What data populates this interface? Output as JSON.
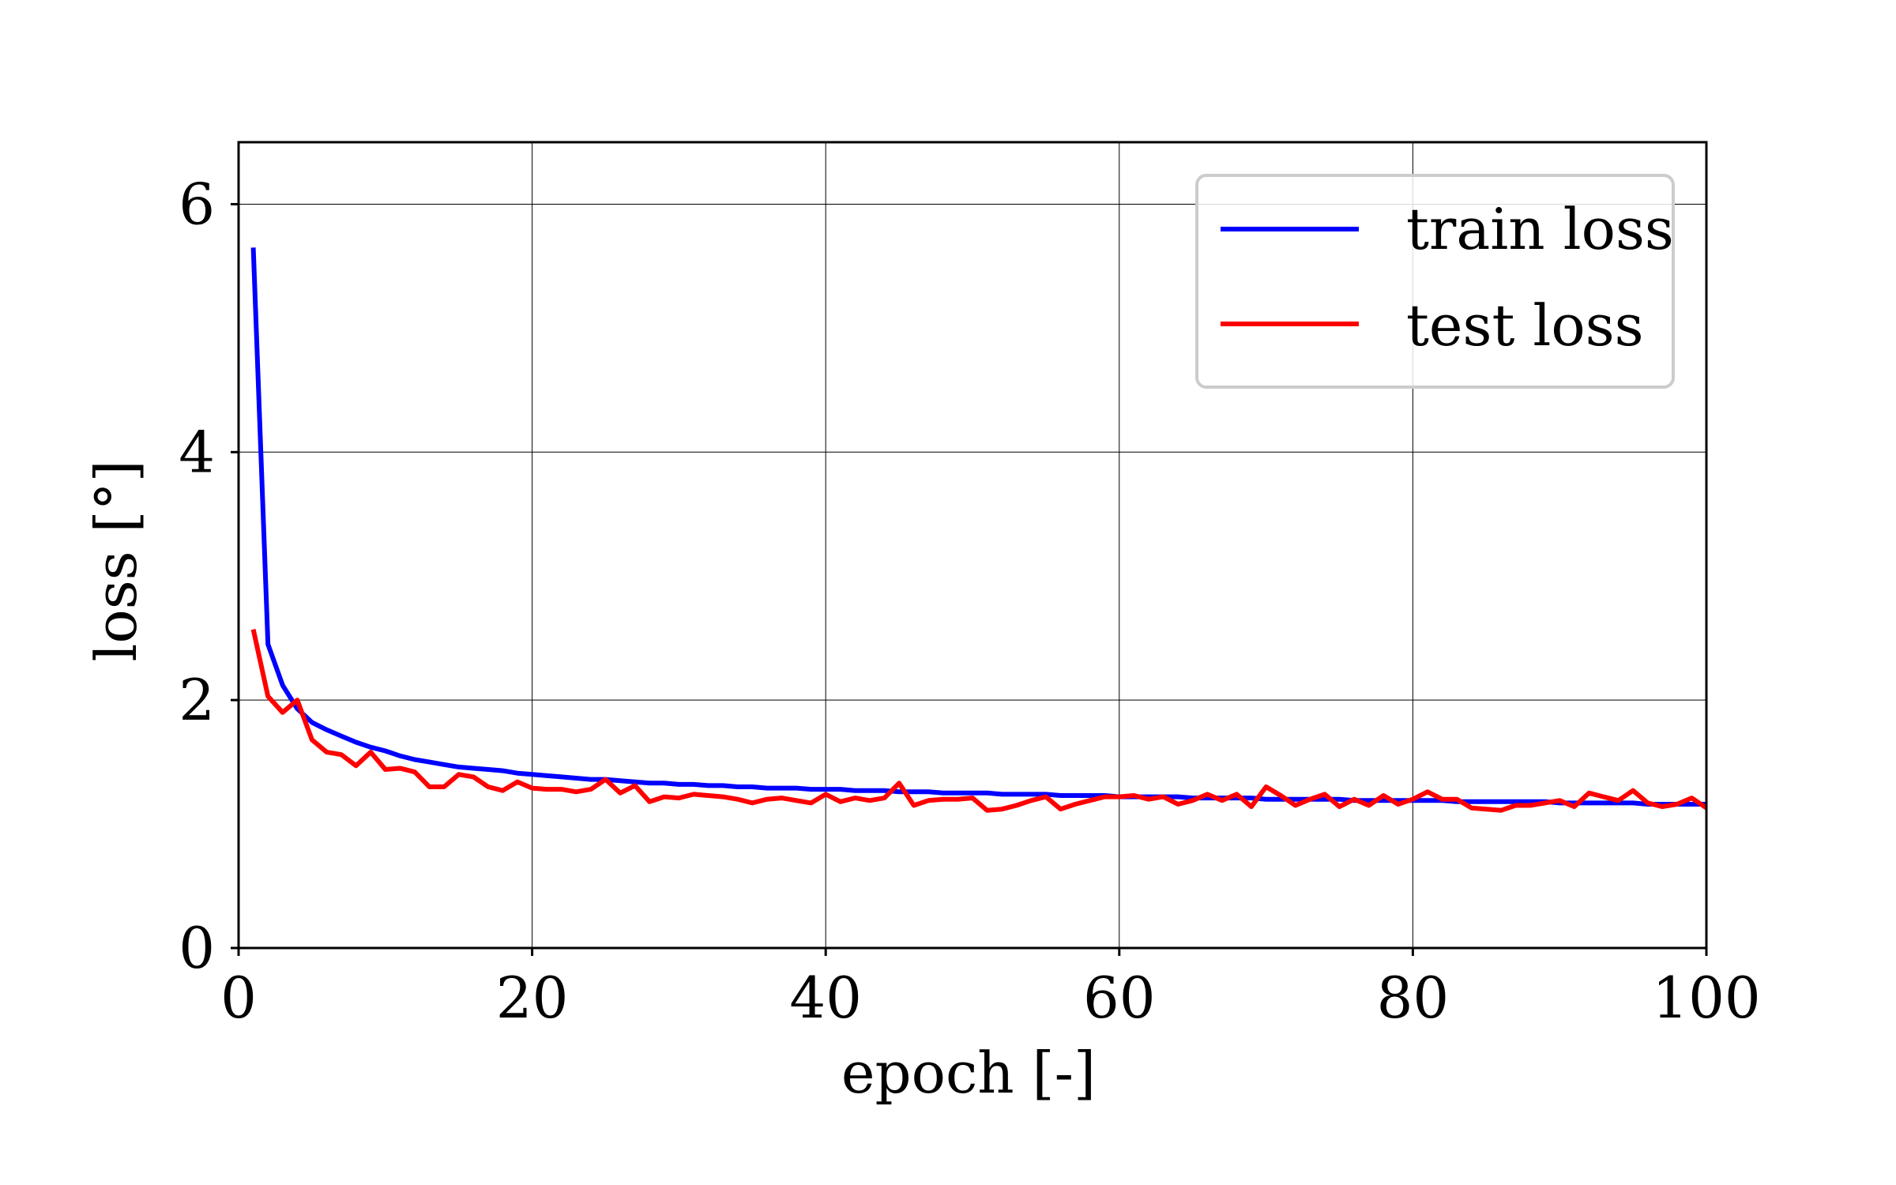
{
  "chart_data": {
    "type": "line",
    "title": "",
    "xlabel": "epoch [-]",
    "ylabel": "loss [°]",
    "xlim": [
      0,
      100
    ],
    "ylim": [
      0,
      6.5
    ],
    "xticks": [
      0,
      20,
      40,
      60,
      80,
      100
    ],
    "xtick_labels": [
      "0",
      "20",
      "40",
      "60",
      "80",
      "100"
    ],
    "yticks": [
      0,
      2,
      4,
      6
    ],
    "ytick_labels": [
      "0",
      "2",
      "4",
      "6"
    ],
    "grid": true,
    "legend_position": "top-right",
    "x": [
      1,
      2,
      3,
      4,
      5,
      6,
      7,
      8,
      9,
      10,
      11,
      12,
      13,
      14,
      15,
      16,
      17,
      18,
      19,
      20,
      21,
      22,
      23,
      24,
      25,
      26,
      27,
      28,
      29,
      30,
      31,
      32,
      33,
      34,
      35,
      36,
      37,
      38,
      39,
      40,
      41,
      42,
      43,
      44,
      45,
      46,
      47,
      48,
      49,
      50,
      51,
      52,
      53,
      54,
      55,
      56,
      57,
      58,
      59,
      60,
      61,
      62,
      63,
      64,
      65,
      66,
      67,
      68,
      69,
      70,
      71,
      72,
      73,
      74,
      75,
      76,
      77,
      78,
      79,
      80,
      81,
      82,
      83,
      84,
      85,
      86,
      87,
      88,
      89,
      90,
      91,
      92,
      93,
      94,
      95,
      96,
      97,
      98,
      99,
      100
    ],
    "series": [
      {
        "name": "train loss",
        "color": "#0000ff",
        "values": [
          5.65,
          2.45,
          2.12,
          1.93,
          1.82,
          1.76,
          1.71,
          1.66,
          1.62,
          1.59,
          1.55,
          1.52,
          1.5,
          1.48,
          1.46,
          1.45,
          1.44,
          1.43,
          1.41,
          1.4,
          1.39,
          1.38,
          1.37,
          1.36,
          1.36,
          1.35,
          1.34,
          1.33,
          1.33,
          1.32,
          1.32,
          1.31,
          1.31,
          1.3,
          1.3,
          1.29,
          1.29,
          1.29,
          1.28,
          1.28,
          1.28,
          1.27,
          1.27,
          1.27,
          1.26,
          1.26,
          1.26,
          1.25,
          1.25,
          1.25,
          1.25,
          1.24,
          1.24,
          1.24,
          1.24,
          1.23,
          1.23,
          1.23,
          1.23,
          1.22,
          1.22,
          1.22,
          1.22,
          1.22,
          1.21,
          1.21,
          1.21,
          1.21,
          1.21,
          1.2,
          1.2,
          1.2,
          1.2,
          1.2,
          1.2,
          1.19,
          1.19,
          1.19,
          1.19,
          1.19,
          1.19,
          1.19,
          1.18,
          1.18,
          1.18,
          1.18,
          1.18,
          1.18,
          1.18,
          1.17,
          1.17,
          1.17,
          1.17,
          1.17,
          1.17,
          1.16,
          1.16,
          1.16,
          1.16,
          1.16
        ]
      },
      {
        "name": "test loss",
        "color": "#ff0000",
        "values": [
          2.57,
          2.03,
          1.9,
          2.0,
          1.68,
          1.58,
          1.56,
          1.47,
          1.58,
          1.44,
          1.45,
          1.42,
          1.3,
          1.3,
          1.4,
          1.38,
          1.3,
          1.27,
          1.34,
          1.29,
          1.28,
          1.28,
          1.26,
          1.28,
          1.36,
          1.25,
          1.31,
          1.18,
          1.22,
          1.21,
          1.24,
          1.23,
          1.22,
          1.2,
          1.17,
          1.2,
          1.21,
          1.19,
          1.17,
          1.24,
          1.18,
          1.21,
          1.19,
          1.21,
          1.33,
          1.15,
          1.19,
          1.2,
          1.2,
          1.21,
          1.11,
          1.12,
          1.15,
          1.19,
          1.22,
          1.12,
          1.16,
          1.19,
          1.22,
          1.22,
          1.23,
          1.2,
          1.22,
          1.16,
          1.19,
          1.24,
          1.19,
          1.24,
          1.14,
          1.3,
          1.23,
          1.15,
          1.2,
          1.24,
          1.14,
          1.2,
          1.15,
          1.23,
          1.16,
          1.2,
          1.26,
          1.2,
          1.2,
          1.13,
          1.12,
          1.11,
          1.15,
          1.15,
          1.17,
          1.19,
          1.14,
          1.25,
          1.22,
          1.19,
          1.27,
          1.17,
          1.14,
          1.16,
          1.21,
          1.13
        ]
      }
    ]
  }
}
